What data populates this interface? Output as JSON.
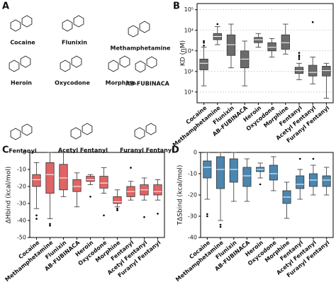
{
  "panel_a": {
    "label": "A",
    "molecules": [
      "Cocaine",
      "Flunixin",
      "Methamphetamine",
      "Heroin",
      "Oxycodone",
      "Morphine",
      "AB-FUBINACA",
      "Fentanyl",
      "Acetyl Fentanyl",
      "Furanyl Fentanyl"
    ]
  },
  "chart_data": [
    {
      "type": "box",
      "label": "B",
      "ylabel": "KD (nM)",
      "log": true,
      "grid": true,
      "color": "#6b6b6b",
      "categories": [
        "Cocaine",
        "Methamphetamine",
        "Flunixin",
        "AB-FUBINACA",
        "Heroin",
        "Oxycodone",
        "Morphine",
        "Fentanyl",
        "Acetyl Fentanyl",
        "Furanyl Fentanyl"
      ],
      "ylim": [
        3,
        200000
      ],
      "yticks": [
        {
          "value": 10,
          "label": "10¹"
        },
        {
          "value": 100,
          "label": "10²"
        },
        {
          "value": 1000,
          "label": "10³"
        },
        {
          "value": 10000,
          "label": "10⁴"
        },
        {
          "value": 100000,
          "label": "10⁵"
        }
      ],
      "boxes": [
        {
          "min": 20,
          "q1": 120,
          "median": 250,
          "q3": 400,
          "max": 1500,
          "outliers": [
            1800,
            2500,
            3000
          ]
        },
        {
          "min": 2000,
          "q1": 3500,
          "median": 5000,
          "q3": 7000,
          "max": 15000,
          "outliers": [
            20000
          ]
        },
        {
          "min": 150,
          "q1": 600,
          "median": 2000,
          "q3": 6000,
          "max": 20000,
          "outliers": []
        },
        {
          "min": 20,
          "q1": 150,
          "median": 400,
          "q3": 1000,
          "max": 3000,
          "outliers": []
        },
        {
          "min": 1500,
          "q1": 2500,
          "median": 3500,
          "q3": 4500,
          "max": 7000,
          "outliers": []
        },
        {
          "min": 500,
          "q1": 1000,
          "median": 1500,
          "q3": 2500,
          "max": 4000,
          "outliers": []
        },
        {
          "min": 700,
          "q1": 1200,
          "median": 2500,
          "q3": 6000,
          "max": 20000,
          "outliers": []
        },
        {
          "min": 40,
          "q1": 80,
          "median": 110,
          "q3": 160,
          "max": 250,
          "outliers": [
            400,
            500,
            600,
            800
          ]
        },
        {
          "min": 25,
          "q1": 60,
          "median": 90,
          "q3": 200,
          "max": 500,
          "outliers": [
            25000
          ]
        },
        {
          "min": 5,
          "q1": 60,
          "median": 110,
          "q3": 180,
          "max": 250,
          "outliers": []
        }
      ]
    },
    {
      "type": "box",
      "label": "C",
      "ylabel": "ΔHbind (kcal/mol)",
      "log": false,
      "grid": false,
      "color": "#e06464",
      "categories": [
        "Cocaine",
        "Methamphetamine",
        "Flunixin",
        "AB-FUBINACA",
        "Heroin",
        "Oxycodone",
        "Morphine",
        "Fentanyl",
        "Acetyl Fentanyl",
        "Furanyl Fentanyl"
      ],
      "ylim": [
        -50,
        0
      ],
      "yticks": [
        -50,
        -40,
        -30,
        -20,
        -10,
        0
      ],
      "boxes": [
        {
          "min": -33,
          "q1": -20,
          "median": -16,
          "q3": -13,
          "max": -6,
          "outliers": [
            -39,
            -37
          ]
        },
        {
          "min": -39,
          "q1": -24,
          "median": -13,
          "q3": -6,
          "max": 0,
          "outliers": [
            -42,
            -43
          ]
        },
        {
          "min": -26,
          "q1": -22,
          "median": -15,
          "q3": -7,
          "max": 0,
          "outliers": []
        },
        {
          "min": -32,
          "q1": -23,
          "median": -20,
          "q3": -16,
          "max": -12,
          "outliers": []
        },
        {
          "min": -19,
          "q1": -17,
          "median": -16,
          "q3": -14,
          "max": -13,
          "outliers": [
            -26
          ]
        },
        {
          "min": -24,
          "q1": -21,
          "median": -18,
          "q3": -14,
          "max": -9,
          "outliers": [
            -37
          ]
        },
        {
          "min": -32,
          "q1": -30,
          "median": -29,
          "q3": -26,
          "max": -22,
          "outliers": [
            -33,
            -34
          ]
        },
        {
          "min": -28,
          "q1": -26,
          "median": -23,
          "q3": -20,
          "max": -17,
          "outliers": [
            -9
          ]
        },
        {
          "min": -28,
          "q1": -25,
          "median": -22,
          "q3": -19,
          "max": -15,
          "outliers": [
            -38
          ]
        },
        {
          "min": -28,
          "q1": -25,
          "median": -23,
          "q3": -19,
          "max": -16,
          "outliers": [
            -36
          ]
        }
      ]
    },
    {
      "type": "box",
      "label": "D",
      "ylabel": "TΔSbind (kcal/mol)",
      "log": false,
      "grid": false,
      "color": "#4a86b0",
      "categories": [
        "Cocaine",
        "Methamphetamine",
        "Flunixin",
        "AB-FUBINACA",
        "Heroin",
        "Oxycodone",
        "Morphine",
        "Fentanyl",
        "Acetyl Fentanyl",
        "Furanyl Fentanyl"
      ],
      "ylim": [
        -40,
        0
      ],
      "yticks": [
        -40,
        -30,
        -20,
        -10,
        0
      ],
      "boxes": [
        {
          "min": -22,
          "q1": -12,
          "median": -7,
          "q3": -4,
          "max": 0,
          "outliers": [
            -29,
            -30
          ]
        },
        {
          "min": -32,
          "q1": -17,
          "median": -8,
          "q3": -2,
          "max": 0,
          "outliers": [
            -34,
            -35
          ]
        },
        {
          "min": -23,
          "q1": -14,
          "median": -8,
          "q3": -3,
          "max": 0,
          "outliers": []
        },
        {
          "min": -23,
          "q1": -16,
          "median": -11,
          "q3": -7,
          "max": -3,
          "outliers": []
        },
        {
          "min": -12,
          "q1": -9,
          "median": -8,
          "q3": -7,
          "max": -5,
          "outliers": [
            -15
          ]
        },
        {
          "min": -18,
          "q1": -13,
          "median": -10,
          "q3": -6,
          "max": -2,
          "outliers": []
        },
        {
          "min": -31,
          "q1": -24,
          "median": -21,
          "q3": -18,
          "max": -14,
          "outliers": []
        },
        {
          "min": -22,
          "q1": -17,
          "median": -15,
          "q3": -11,
          "max": -8,
          "outliers": [
            -3
          ]
        },
        {
          "min": -20,
          "q1": -16,
          "median": -13,
          "q3": -10,
          "max": -6,
          "outliers": [
            -3
          ]
        },
        {
          "min": -20,
          "q1": -16,
          "median": -13,
          "q3": -11,
          "max": -7,
          "outliers": []
        }
      ]
    }
  ]
}
